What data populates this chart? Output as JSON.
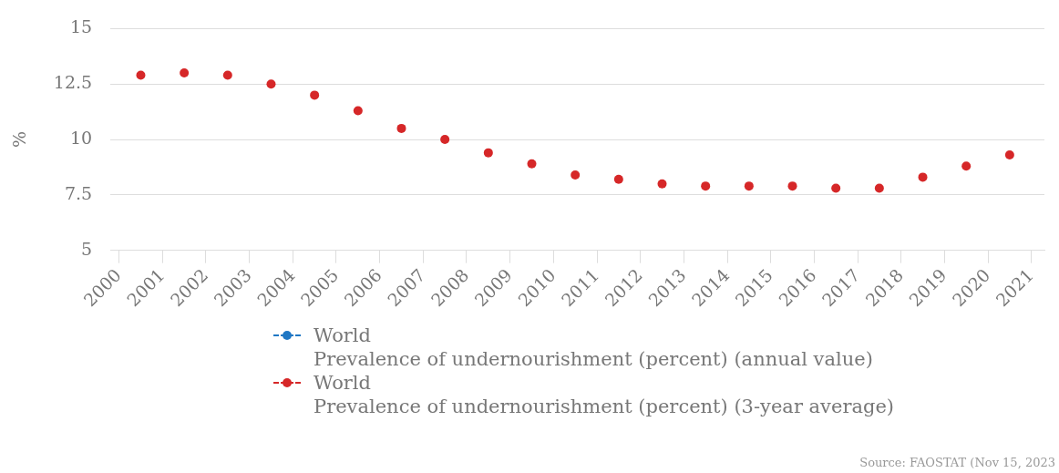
{
  "chart_data": {
    "type": "scatter",
    "ylabel": "%",
    "x": [
      2000.5,
      2001.5,
      2002.5,
      2003.5,
      2004.5,
      2005.5,
      2006.5,
      2007.5,
      2008.5,
      2009.5,
      2010.5,
      2011.5,
      2012.5,
      2013.5,
      2014.5,
      2015.5,
      2016.5,
      2017.5,
      2018.5,
      2019.5,
      2020.5
    ],
    "series": [
      {
        "name": "World\nPrevalence of undernourishment (percent) (annual value)",
        "color": "#1f77c4",
        "values": [
          null,
          null,
          null,
          null,
          null,
          null,
          null,
          null,
          null,
          null,
          null,
          null,
          null,
          null,
          null,
          null,
          null,
          null,
          null,
          null,
          null
        ]
      },
      {
        "name": "World\nPrevalence of undernourishment (percent) (3-year average)",
        "color": "#d62728",
        "values": [
          12.9,
          13.0,
          12.9,
          12.5,
          12.0,
          11.3,
          10.5,
          10.0,
          9.4,
          8.9,
          8.4,
          8.2,
          8.0,
          7.9,
          7.9,
          7.9,
          7.8,
          7.8,
          8.3,
          8.8,
          9.3
        ]
      }
    ],
    "xlim": [
      1999.8,
      2021.3
    ],
    "xticks": [
      2000,
      2001,
      2002,
      2003,
      2004,
      2005,
      2006,
      2007,
      2008,
      2009,
      2010,
      2011,
      2012,
      2013,
      2014,
      2015,
      2016,
      2017,
      2018,
      2019,
      2020,
      2021
    ],
    "ylim": [
      5,
      15
    ],
    "yticks": [
      5,
      7.5,
      10,
      12.5,
      15
    ],
    "grid": "y",
    "legend": "bottom",
    "marker": "circle",
    "annotations": [
      "Source: FAOSTAT (Nov 15, 2023"
    ]
  }
}
